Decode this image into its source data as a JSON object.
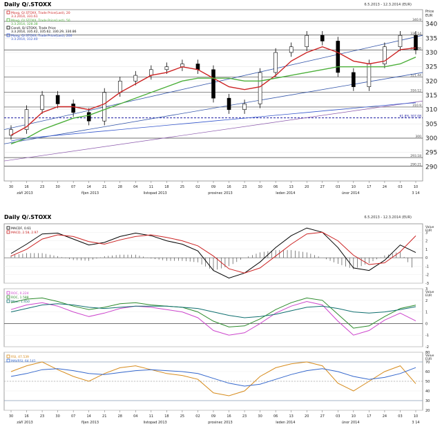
{
  "top_panel": {
    "title": "Daily Q/.STOXX",
    "date_range": "6.5.2013 - 12.3.2014 (EUR)",
    "price_label": "Price",
    "unit_label": "EUR"
  },
  "bottom_panel": {
    "title": "Daily Q/.STOXX",
    "date_range": "6.5.2013 - 12.3.2014 (EUR)"
  },
  "legend_price": [
    {
      "text": "Mavg, Q/.STOXX, Trade Price(Last), 20",
      "value": "3.3.2014, 331.61",
      "color": "#cc2222"
    },
    {
      "text": "Mavg, Q/.STOXX, Trade Price(Last), 50",
      "value": "3.3.2014, 328.38",
      "color": "#4caf3a"
    },
    {
      "text": "Candl, Q/.STOXX, Trade Price",
      "value": "3.3.2014, 335.42, 335.62, 330.29, 330.86",
      "color": "#000000"
    },
    {
      "text": "Mavg, Q/.STOXX, Trade Price(Last), 200",
      "value": "3.3.2014, 312.40",
      "color": "#3355cc"
    }
  ],
  "legend_macd": [
    {
      "text": "MACDF, 0.61",
      "color": "#000000"
    },
    {
      "text": "MACD, 2.58, 2.97",
      "color": "#cc2222"
    }
  ],
  "legend_roc": [
    {
      "text": "ROC, 0.224",
      "color": "#cc44cc"
    },
    {
      "text": "ROC, 1.588",
      "color": "#2a8a2a"
    },
    {
      "text": "Mavr, 1.450",
      "color": "#0d6e6e"
    }
  ],
  "legend_rsi": [
    {
      "text": "RSI, 47.539",
      "color": "#d68a1a"
    },
    {
      "text": "MAVRSI, 64.141",
      "color": "#3366cc"
    }
  ],
  "price_tags": {
    "resist_top": "340.9",
    "line_336": "336.14",
    "line_331": "330.86",
    "line_321": "321.44",
    "line_315": "316.12",
    "line_311": "310.9",
    "line_307": "61.8% 307.08",
    "line_300": "300",
    "line_293": "293.18",
    "line_290": "290.21"
  },
  "x_axis": {
    "ticks": [
      "30",
      "16",
      "23",
      "30",
      "07",
      "14",
      "21",
      "28",
      "04",
      "11",
      "18",
      "25",
      "02",
      "09",
      "16",
      "23",
      "30",
      "06",
      "13",
      "20",
      "27",
      "03",
      "10",
      "17",
      "24",
      "03",
      "10"
    ],
    "months": [
      "září 2013",
      "říjen 2013",
      "listopad 2013",
      "prosinec 2013",
      "leden 2014",
      "únor 2014",
      "3 14"
    ]
  },
  "chart_data": [
    {
      "type": "candlestick",
      "title": "Daily Q/.STOXX",
      "ylabel": "Price EUR",
      "ylim": [
        285,
        345
      ],
      "yticks": [
        290,
        295,
        300,
        305,
        310,
        315,
        320,
        325,
        330,
        335,
        340
      ],
      "grid": true,
      "x_dates": [
        "2013-09-02",
        "2013-09-09",
        "2013-09-16",
        "2013-09-23",
        "2013-09-30",
        "2013-10-07",
        "2013-10-14",
        "2013-10-21",
        "2013-10-28",
        "2013-11-04",
        "2013-11-11",
        "2013-11-18",
        "2013-11-25",
        "2013-12-02",
        "2013-12-09",
        "2013-12-16",
        "2013-12-23",
        "2013-12-30",
        "2014-01-06",
        "2014-01-13",
        "2014-01-20",
        "2014-01-27",
        "2014-02-03",
        "2014-02-10",
        "2014-02-17",
        "2014-02-24",
        "2014-03-03"
      ],
      "series": [
        {
          "name": "Candl, Q/.STOXX, Trade Price",
          "close": [
            303,
            310,
            315,
            312,
            309,
            306,
            316,
            320,
            322,
            324,
            325,
            326,
            324,
            314,
            310,
            312,
            323,
            330,
            332,
            336,
            334,
            323,
            318,
            326,
            332,
            336,
            330.86
          ],
          "color": "#000000"
        },
        {
          "name": "Mavg 20",
          "values": [
            301,
            304,
            309,
            311,
            311,
            310,
            312,
            316,
            319,
            322,
            323,
            325,
            324,
            321,
            318,
            317,
            318,
            322,
            327,
            330,
            332,
            330,
            327,
            326,
            327,
            331,
            331.61
          ],
          "color": "#cc2222"
        },
        {
          "name": "Mavg 50",
          "values": [
            298,
            300,
            303,
            305,
            307,
            308,
            310,
            312,
            314,
            316,
            318,
            320,
            321,
            321,
            321,
            320,
            320,
            321,
            322,
            323,
            324,
            325,
            325,
            325,
            325,
            326,
            328.38
          ],
          "color": "#4caf3a"
        },
        {
          "name": "Mavg 200",
          "values": [
            299,
            300,
            300.5,
            301,
            301.5,
            302,
            302.5,
            303,
            303.5,
            304,
            304.5,
            305,
            305.5,
            306,
            306.5,
            307,
            307.5,
            308,
            308.5,
            309,
            309.5,
            310,
            310.5,
            311,
            311.5,
            312,
            312.4
          ],
          "color": "#3355cc"
        }
      ]
    },
    {
      "type": "line",
      "title": "MACD",
      "ylim": [
        -3,
        4
      ],
      "series": [
        {
          "name": "MACDF",
          "values": [
            0.5,
            1.6,
            2.8,
            2.9,
            2.2,
            1.5,
            1.8,
            2.5,
            2.9,
            2.6,
            2.0,
            1.6,
            0.8,
            -1.5,
            -2.4,
            -1.8,
            -0.5,
            1.2,
            2.6,
            3.5,
            3.0,
            1.2,
            -1.2,
            -1.5,
            -0.3,
            1.5,
            0.61
          ],
          "color": "#000000"
        },
        {
          "name": "MACD",
          "values": [
            0.2,
            1.0,
            2.2,
            2.7,
            2.5,
            1.9,
            1.6,
            2.1,
            2.5,
            2.7,
            2.4,
            2.0,
            1.4,
            0.2,
            -1.3,
            -1.8,
            -1.2,
            0.2,
            1.6,
            2.8,
            3.0,
            2.0,
            0.3,
            -0.8,
            -0.6,
            0.7,
            2.58
          ],
          "color": "#cc2222"
        }
      ]
    },
    {
      "type": "line",
      "title": "ROC",
      "ylim": [
        -2,
        3
      ],
      "series": [
        {
          "name": "ROC",
          "values": [
            1.2,
            1.6,
            1.8,
            1.5,
            1.0,
            0.6,
            0.9,
            1.3,
            1.5,
            1.4,
            1.2,
            1.0,
            0.5,
            -0.6,
            -1.0,
            -0.8,
            0.0,
            0.9,
            1.5,
            1.9,
            1.6,
            0.2,
            -1.0,
            -0.6,
            0.3,
            0.9,
            0.224
          ],
          "color": "#cc44cc"
        },
        {
          "name": "ROC",
          "values": [
            1.8,
            2.1,
            2.2,
            1.9,
            1.5,
            1.2,
            1.4,
            1.7,
            1.8,
            1.6,
            1.5,
            1.4,
            1.0,
            0.2,
            -0.3,
            -0.2,
            0.4,
            1.2,
            1.8,
            2.2,
            2.0,
            0.8,
            -0.4,
            -0.2,
            0.6,
            1.3,
            1.588
          ],
          "color": "#2a8a2a"
        },
        {
          "name": "Mavr",
          "values": [
            1.0,
            1.3,
            1.6,
            1.7,
            1.6,
            1.4,
            1.3,
            1.4,
            1.5,
            1.5,
            1.5,
            1.4,
            1.3,
            1.0,
            0.7,
            0.5,
            0.6,
            0.8,
            1.1,
            1.4,
            1.5,
            1.3,
            1.0,
            0.9,
            1.0,
            1.2,
            1.45
          ],
          "color": "#0d6e6e"
        }
      ]
    },
    {
      "type": "line",
      "title": "RSI",
      "ylim": [
        20,
        80
      ],
      "series": [
        {
          "name": "RSI",
          "values": [
            60,
            66,
            70,
            62,
            55,
            50,
            58,
            64,
            66,
            62,
            58,
            56,
            52,
            38,
            35,
            40,
            55,
            64,
            68,
            70,
            66,
            48,
            40,
            50,
            60,
            66,
            47.539
          ],
          "color": "#d68a1a"
        },
        {
          "name": "MAVRSI",
          "values": [
            55,
            58,
            62,
            63,
            61,
            58,
            57,
            59,
            61,
            62,
            61,
            60,
            58,
            53,
            48,
            45,
            47,
            52,
            57,
            61,
            63,
            60,
            55,
            52,
            54,
            58,
            64.141
          ],
          "color": "#3366cc"
        }
      ]
    }
  ]
}
